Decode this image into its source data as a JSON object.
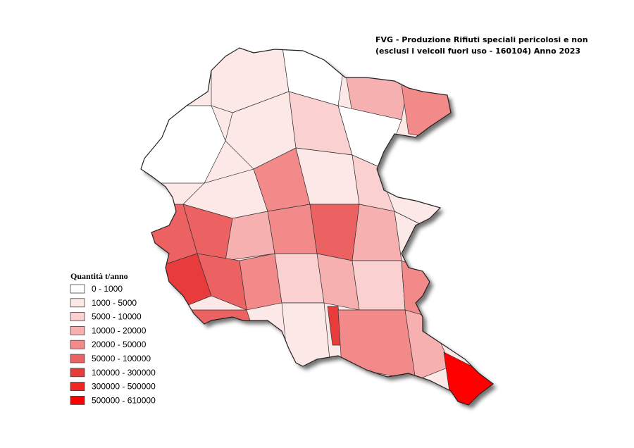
{
  "title": [
    "FVG - Produzione Rifiuti speciali pericolosi e non",
    "(esclusi i veicoli fuori uso - 160104) Anno 2023"
  ],
  "legend": {
    "title": "Quantità t/anno",
    "items": [
      {
        "label": "0 - 1000",
        "color": "#ffffff"
      },
      {
        "label": "1000 - 5000",
        "color": "#fde8e8"
      },
      {
        "label": "5000 - 10000",
        "color": "#fbd0d0"
      },
      {
        "label": "10000 - 20000",
        "color": "#f7b0b0"
      },
      {
        "label": "20000 - 50000",
        "color": "#f28a8a"
      },
      {
        "label": "50000 - 100000",
        "color": "#ec6262"
      },
      {
        "label": "100000 - 300000",
        "color": "#e83c3c"
      },
      {
        "label": "300000 - 500000",
        "color": "#f22424"
      },
      {
        "label": "500000 - 610000",
        "color": "#ff0000"
      }
    ]
  }
}
